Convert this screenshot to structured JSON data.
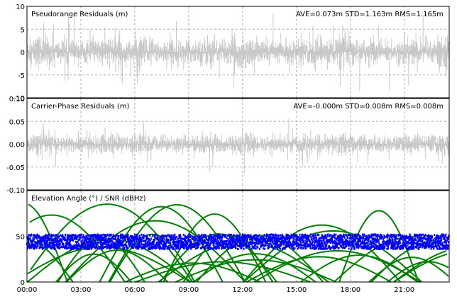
{
  "chart_data": [
    {
      "type": "scatter",
      "title": "Pseudorange Residuals (m)",
      "stats": "AVE=0.073m STD=1.163m RMS=1.165m",
      "ylim": [
        -10,
        10
      ],
      "yticks": [
        10,
        5,
        0,
        -5,
        -10
      ],
      "grid": true,
      "series": [
        {
          "color": "#c0c0c0",
          "mean": 0.073,
          "std": 1.163
        }
      ]
    },
    {
      "type": "scatter",
      "title": "Carrier-Phase Residuals (m)",
      "stats": "AVE=-0.000m STD=0.008m RMS=0.008m",
      "ylim": [
        -0.1,
        0.1
      ],
      "yticks": [
        "0.10",
        "0.05",
        "0.00",
        "-0.05",
        "-0.10"
      ],
      "grid": true,
      "series": [
        {
          "color": "#c0c0c0",
          "mean": 0.0,
          "std": 0.008
        }
      ]
    },
    {
      "type": "line",
      "title": "Elevation Angle (°) / SNR (dBHz)",
      "ylim": [
        0,
        100
      ],
      "yticks": [
        50,
        0
      ],
      "grid": true,
      "series": [
        {
          "color": "#008000",
          "kind": "elevation",
          "range": [
            0,
            90
          ]
        },
        {
          "color": "#0000ff",
          "kind": "snr",
          "range": [
            36,
            52
          ]
        }
      ]
    }
  ],
  "x_axis": {
    "range_hours": [
      0,
      23.5
    ],
    "tick_labels": [
      "00:00",
      "03:00",
      "06:00",
      "09:00",
      "12:00",
      "15:00",
      "18:00",
      "21:00"
    ]
  },
  "colors": {
    "background": "#ffffff",
    "frame": "#000000",
    "grid": "#b0b0b0",
    "residual_points": "#c0c0c0",
    "elevation": "#008000",
    "snr": "#0000ff"
  }
}
